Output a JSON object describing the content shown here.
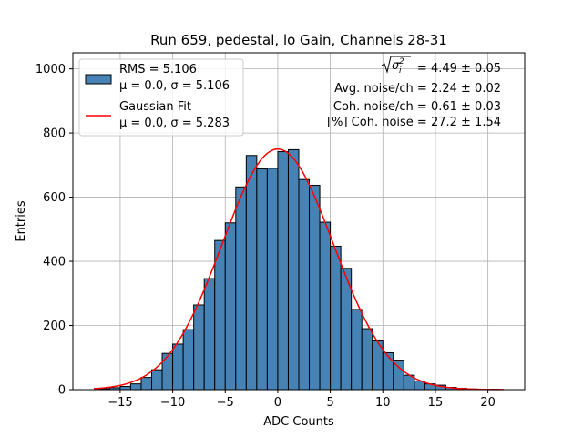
{
  "chart_data": {
    "type": "bar",
    "title": "Run 659, pedestal, lo Gain, Channels 28-31",
    "xlabel": "ADC Counts",
    "ylabel": "Entries",
    "xlim": [
      -19.5,
      23.5
    ],
    "ylim": [
      0,
      1050
    ],
    "xticks": [
      -15,
      -10,
      -5,
      0,
      5,
      10,
      15,
      20
    ],
    "xtick_labels": [
      "−15",
      "−10",
      "−5",
      "0",
      "5",
      "10",
      "15",
      "20"
    ],
    "yticks": [
      0,
      200,
      400,
      600,
      800,
      1000
    ],
    "ytick_labels": [
      "0",
      "200",
      "400",
      "600",
      "800",
      "1000"
    ],
    "grid": true,
    "legend_position": "top-left",
    "histogram": {
      "name": "RMS = 5.106",
      "sublabel": "μ = 0.0, σ = 5.106",
      "color": "#4682b4",
      "edgecolor": "#000000",
      "bin_width": 1.0,
      "bin_centers": [
        -16.5,
        -15.5,
        -14.5,
        -13.5,
        -12.5,
        -11.5,
        -10.5,
        -9.5,
        -8.5,
        -7.5,
        -6.5,
        -5.5,
        -4.5,
        -3.5,
        -2.5,
        -1.5,
        -0.5,
        0.5,
        1.5,
        2.5,
        3.5,
        4.5,
        5.5,
        6.5,
        7.5,
        8.5,
        9.5,
        10.5,
        11.5,
        12.5,
        13.5,
        14.5,
        15.5,
        16.5,
        17.5,
        18.5,
        19.5,
        20.5
      ],
      "values": [
        3,
        6,
        10,
        18,
        38,
        62,
        113,
        142,
        187,
        264,
        346,
        465,
        520,
        632,
        730,
        688,
        690,
        742,
        748,
        655,
        637,
        522,
        447,
        378,
        250,
        190,
        152,
        115,
        92,
        45,
        27,
        18,
        14,
        7,
        4,
        2,
        1,
        1
      ]
    },
    "fit": {
      "name": "Gaussian Fit",
      "sublabel": "μ = 0.0, σ = 5.283",
      "color": "#ff0000",
      "mu": 0.0,
      "sigma": 5.283,
      "amplitude": 750,
      "x_range": [
        -17.5,
        21.5
      ]
    },
    "annotations": [
      {
        "label": "= 4.49 ± 0.05"
      },
      {
        "label": "Avg. noise/ch = 2.24 ± 0.02"
      },
      {
        "label": "Coh. noise/ch = 0.61 ± 0.03"
      },
      {
        "label": "[%] Coh. noise = 27.2 ± 1.54"
      }
    ]
  }
}
